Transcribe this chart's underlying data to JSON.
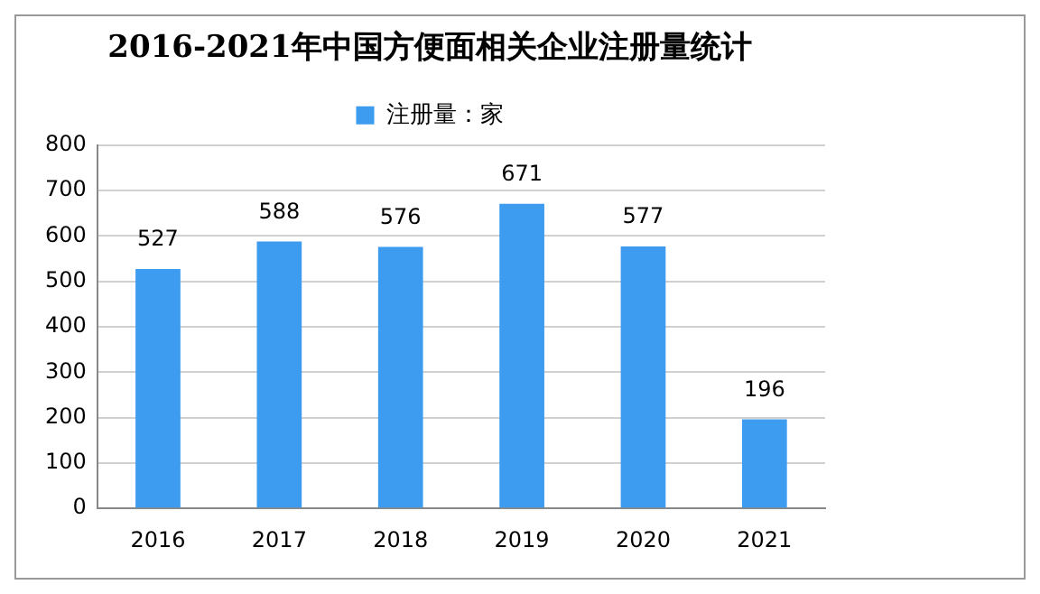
{
  "chart_data": {
    "type": "bar",
    "title": "2016-2021年中国方便面相关企业注册量统计",
    "categories": [
      "2016",
      "2017",
      "2018",
      "2019",
      "2020",
      "2021"
    ],
    "series": [
      {
        "name": "注册量：家",
        "color": "#3d9bf0",
        "values": [
          527,
          588,
          576,
          671,
          577,
          196
        ]
      }
    ],
    "ylim": [
      0,
      800
    ],
    "yticks": [
      0,
      100,
      200,
      300,
      400,
      500,
      600,
      700,
      800
    ],
    "grid": "y",
    "legend": "top",
    "data_labels": true
  }
}
